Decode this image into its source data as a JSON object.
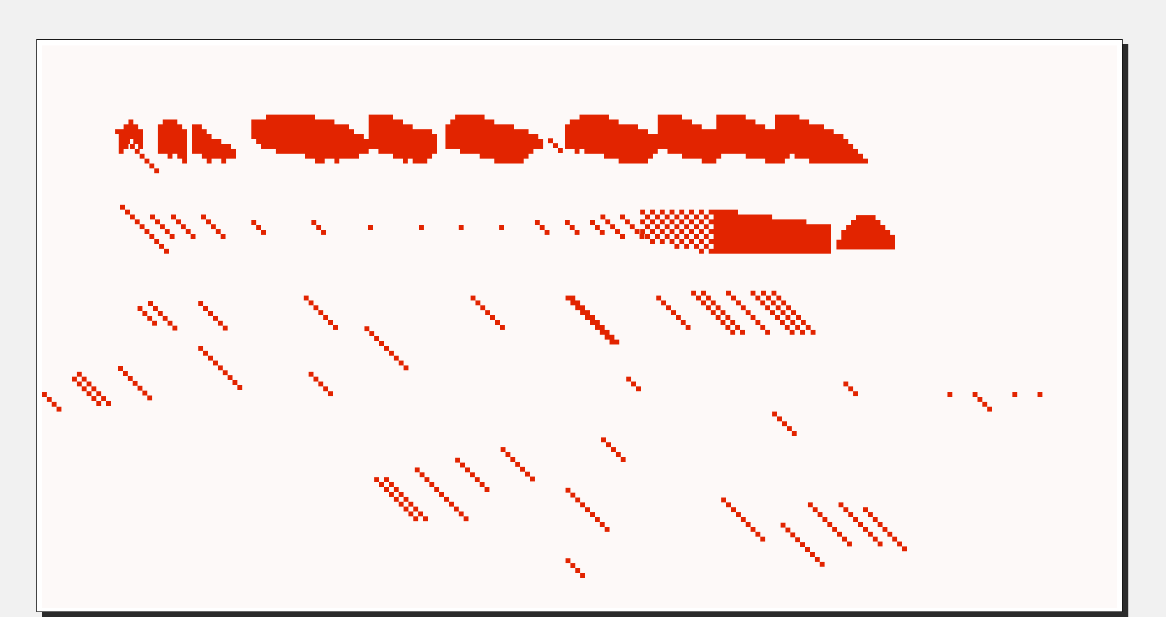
{
  "window": {
    "title": "",
    "background": "#f1f1f1",
    "frame_color": "#111111",
    "shadow_color": "#2b2b2b",
    "canvas_color": "#fdf9f8"
  },
  "pattern": {
    "pixel_color": "#e22400",
    "description_visible_text": ""
  }
}
